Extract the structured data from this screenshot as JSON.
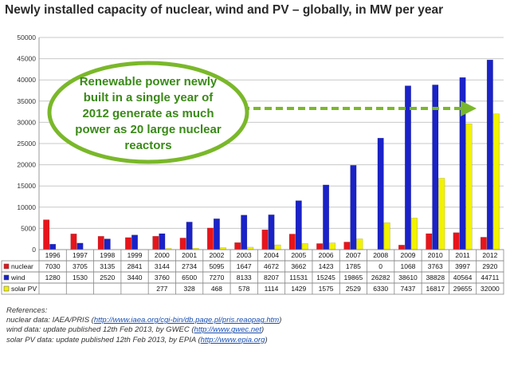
{
  "chart_data": {
    "type": "bar",
    "title": "Newly installed capacity of nuclear, wind and PV – globally, in MW per year",
    "categories": [
      "1996",
      "1997",
      "1998",
      "1999",
      "2000",
      "2001",
      "2002",
      "2003",
      "2004",
      "2005",
      "2006",
      "2007",
      "2008",
      "2009",
      "2010",
      "2011",
      "2012"
    ],
    "ylim": [
      0,
      50000
    ],
    "yticks": [
      "0",
      "5000",
      "10000",
      "15000",
      "20000",
      "25000",
      "30000",
      "35000",
      "40000",
      "45000",
      "50000"
    ],
    "grid": true,
    "legend_placement": "table-left",
    "series": [
      {
        "name": "nuclear",
        "color": "#e8141b",
        "values": [
          7030,
          3705,
          3135,
          2841,
          3144,
          2734,
          5095,
          1647,
          4672,
          3662,
          1423,
          1785,
          0,
          1068,
          3763,
          3997,
          2920
        ],
        "labels": [
          "7030",
          "3705",
          "3135",
          "2841",
          "3144",
          "2734",
          "5095",
          "1647",
          "4672",
          "3662",
          "1423",
          "1785",
          "0",
          "1068",
          "3763",
          "3997",
          "2920"
        ]
      },
      {
        "name": "wind",
        "color": "#1a22c8",
        "values": [
          1280,
          1530,
          2520,
          3440,
          3760,
          6500,
          7270,
          8133,
          8207,
          11531,
          15245,
          19865,
          26282,
          38610,
          38828,
          40564,
          44711
        ],
        "labels": [
          "1280",
          "1530",
          "2520",
          "3440",
          "3760",
          "6500",
          "7270",
          "8133",
          "8207",
          "11531",
          "15245",
          "19865",
          "26282",
          "38610",
          "38828",
          "40564",
          "44711"
        ]
      },
      {
        "name": "solar PV",
        "color": "#f2f200",
        "values": [
          null,
          null,
          null,
          null,
          277,
          328,
          468,
          578,
          1114,
          1429,
          1575,
          2529,
          6330,
          7437,
          16817,
          29655,
          32000
        ],
        "labels": [
          "",
          "",
          "",
          "",
          "277",
          "328",
          "468",
          "578",
          "1114",
          "1429",
          "1575",
          "2529",
          "6330",
          "7437",
          "16817",
          "29655",
          "32000"
        ]
      }
    ],
    "annotation": {
      "lines": [
        "Renewable power newly",
        "built in a single year of",
        "2012 generate as much",
        "power as 20 large nuclear",
        "reactors"
      ],
      "fill": "#ffffff",
      "border": "#7ab82a",
      "text_color": "#3a8a17",
      "arrow_color": "#7ab82a"
    }
  },
  "references": {
    "heading": "References:",
    "nuclear": {
      "text": "nuclear data: IAEA/PRIS (",
      "link": "http://www.iaea.org/cgi-bin/db.page.pl/pris.reaopag.htm",
      "end": ")"
    },
    "wind": {
      "text": "wind data: update published 12th Feb 2013, by GWEC (",
      "link": "http://www.gwec.net",
      "end": ")"
    },
    "solar": {
      "text": "solar PV data: update published 12th Feb 2013, by EPIA (",
      "link": "http://www.epia.org",
      "end": ")"
    }
  }
}
